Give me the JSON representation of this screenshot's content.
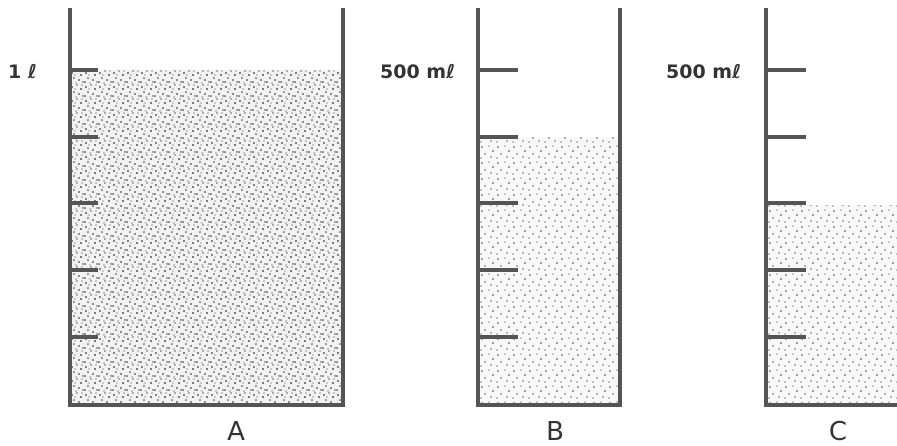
{
  "containers": [
    {
      "scale_label": "1 ℓ",
      "label": "A"
    },
    {
      "scale_label": "500 mℓ",
      "label": "B"
    },
    {
      "scale_label": "500 mℓ",
      "label": "C"
    }
  ]
}
